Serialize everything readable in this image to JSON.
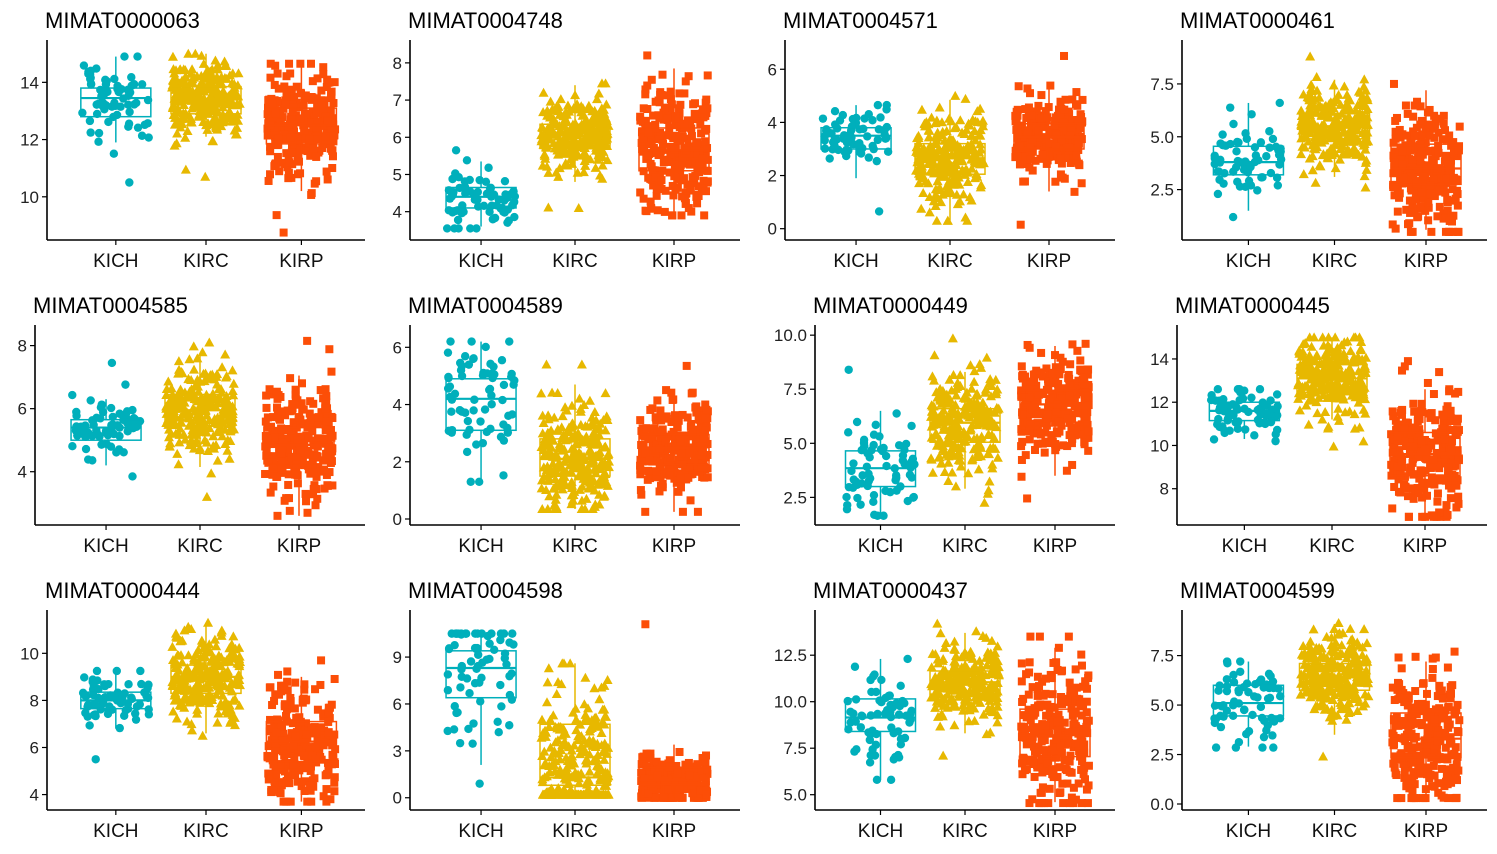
{
  "chart_data": {
    "type": "boxplot-jitter",
    "layout": {
      "rows": 3,
      "cols": 4
    },
    "categories": [
      "KICH",
      "KIRC",
      "KIRP"
    ],
    "colors": {
      "KICH": "#00AFBB",
      "KIRC": "#E7B800",
      "KIRP": "#FC4E07"
    },
    "markers": {
      "KICH": "circle",
      "KIRC": "triangle",
      "KIRP": "square"
    },
    "xlabel": "",
    "ylabel": "",
    "grid": false,
    "legend": "none",
    "panels": [
      {
        "title": "MIMAT0000063",
        "ylim": [
          8.7,
          15.2
        ],
        "yticks": [
          10,
          12,
          14
        ],
        "ytick_labels": [
          "10",
          "12",
          "14"
        ],
        "boxes": [
          {
            "group": "KICH",
            "min": 11.9,
            "q1": 12.8,
            "median": 13.45,
            "q3": 13.8,
            "max": 14.9,
            "point_range": [
              10.5,
              14.9
            ],
            "n_points": 66
          },
          {
            "group": "KIRC",
            "min": 12.1,
            "q1": 12.9,
            "median": 13.4,
            "q3": 13.85,
            "max": 15.0,
            "point_range": [
              10.7,
              15.0
            ],
            "n_points": 500
          },
          {
            "group": "KIRP",
            "min": 10.2,
            "q1": 11.85,
            "median": 12.5,
            "q3": 13.1,
            "max": 14.6,
            "point_range": [
              8.75,
              14.65
            ],
            "n_points": 290
          }
        ]
      },
      {
        "title": "MIMAT0004748",
        "ylim": [
          3.4,
          8.4
        ],
        "yticks": [
          4,
          5,
          6,
          7,
          8
        ],
        "ytick_labels": [
          "4",
          "5",
          "6",
          "7",
          "8"
        ],
        "boxes": [
          {
            "group": "KICH",
            "min": 3.6,
            "q1": 4.1,
            "median": 4.4,
            "q3": 4.65,
            "max": 5.35,
            "point_range": [
              3.55,
              5.65
            ],
            "n_points": 66
          },
          {
            "group": "KIRC",
            "min": 4.8,
            "q1": 5.7,
            "median": 6.05,
            "q3": 6.35,
            "max": 7.4,
            "point_range": [
              4.1,
              7.45
            ],
            "n_points": 500
          },
          {
            "group": "KIRP",
            "min": 3.95,
            "q1": 5.1,
            "median": 5.65,
            "q3": 6.25,
            "max": 7.85,
            "point_range": [
              3.9,
              8.2
            ],
            "n_points": 290
          }
        ]
      },
      {
        "title": "MIMAT0004571",
        "ylim": [
          -0.2,
          6.8
        ],
        "yticks": [
          0,
          2,
          4,
          6
        ],
        "ytick_labels": [
          "0",
          "2",
          "4",
          "6"
        ],
        "boxes": [
          {
            "group": "KICH",
            "min": 1.9,
            "q1": 3.0,
            "median": 3.5,
            "q3": 3.8,
            "max": 4.65,
            "point_range": [
              0.65,
              4.65
            ],
            "n_points": 66
          },
          {
            "group": "KIRC",
            "min": 0.3,
            "q1": 2.05,
            "median": 2.65,
            "q3": 3.2,
            "max": 4.85,
            "point_range": [
              0.3,
              5.0
            ],
            "n_points": 500
          },
          {
            "group": "KIRP",
            "min": 1.4,
            "q1": 3.0,
            "median": 3.45,
            "q3": 3.95,
            "max": 5.3,
            "point_range": [
              0.15,
              6.5
            ],
            "n_points": 290
          }
        ]
      },
      {
        "title": "MIMAT0000461",
        "ylim": [
          0.4,
          9.2
        ],
        "yticks": [
          2.5,
          5.0,
          7.5
        ],
        "ytick_labels": [
          "2.5",
          "5.0",
          "7.5"
        ],
        "boxes": [
          {
            "group": "KICH",
            "min": 1.5,
            "q1": 3.2,
            "median": 3.8,
            "q3": 4.55,
            "max": 6.6,
            "point_range": [
              1.2,
              6.6
            ],
            "n_points": 66
          },
          {
            "group": "KIRC",
            "min": 3.1,
            "q1": 4.9,
            "median": 5.5,
            "q3": 6.1,
            "max": 7.7,
            "point_range": [
              2.6,
              8.8
            ],
            "n_points": 500
          },
          {
            "group": "KIRP",
            "min": 0.6,
            "q1": 2.75,
            "median": 3.5,
            "q3": 4.65,
            "max": 7.2,
            "point_range": [
              0.5,
              7.5
            ],
            "n_points": 290
          }
        ]
      },
      {
        "title": "MIMAT0004585",
        "ylim": [
          2.5,
          8.4
        ],
        "yticks": [
          4,
          6,
          8
        ],
        "ytick_labels": [
          "4",
          "6",
          "8"
        ],
        "boxes": [
          {
            "group": "KICH",
            "min": 4.2,
            "q1": 5.0,
            "median": 5.4,
            "q3": 5.65,
            "max": 6.3,
            "point_range": [
              3.85,
              7.45
            ],
            "n_points": 66
          },
          {
            "group": "KIRC",
            "min": 4.15,
            "q1": 5.45,
            "median": 5.95,
            "q3": 6.45,
            "max": 7.7,
            "point_range": [
              3.2,
              8.1
            ],
            "n_points": 500
          },
          {
            "group": "KIRP",
            "min": 2.6,
            "q1": 4.25,
            "median": 4.85,
            "q3": 5.4,
            "max": 7.05,
            "point_range": [
              2.6,
              8.15
            ],
            "n_points": 290
          }
        ]
      },
      {
        "title": "MIMAT0004589",
        "ylim": [
          0,
          6.5
        ],
        "yticks": [
          0,
          2,
          4,
          6
        ],
        "ytick_labels": [
          "0",
          "2",
          "4",
          "6"
        ],
        "boxes": [
          {
            "group": "KICH",
            "min": 1.35,
            "q1": 3.1,
            "median": 4.2,
            "q3": 4.9,
            "max": 6.2,
            "point_range": [
              1.3,
              6.2
            ],
            "n_points": 66
          },
          {
            "group": "KIRC",
            "min": 0.35,
            "q1": 1.5,
            "median": 2.1,
            "q3": 2.8,
            "max": 4.7,
            "point_range": [
              0.35,
              5.4
            ],
            "n_points": 500
          },
          {
            "group": "KIRP",
            "min": 0.25,
            "q1": 1.9,
            "median": 2.5,
            "q3": 2.95,
            "max": 4.1,
            "point_range": [
              0.25,
              5.35
            ],
            "n_points": 290
          }
        ]
      },
      {
        "title": "MIMAT0000449",
        "ylim": [
          1.5,
          10.1
        ],
        "yticks": [
          2.5,
          5.0,
          7.5,
          10.0
        ],
        "ytick_labels": [
          "2.5",
          "5.0",
          "7.5",
          "10.0"
        ],
        "boxes": [
          {
            "group": "KICH",
            "min": 1.7,
            "q1": 3.0,
            "median": 3.85,
            "q3": 4.65,
            "max": 6.5,
            "point_range": [
              1.65,
              8.4
            ],
            "n_points": 66
          },
          {
            "group": "KIRC",
            "min": 2.9,
            "q1": 5.05,
            "median": 5.95,
            "q3": 6.6,
            "max": 8.3,
            "point_range": [
              2.25,
              9.85
            ],
            "n_points": 500
          },
          {
            "group": "KIRP",
            "min": 3.5,
            "q1": 5.8,
            "median": 6.8,
            "q3": 7.45,
            "max": 9.5,
            "point_range": [
              2.45,
              9.6
            ],
            "n_points": 290
          }
        ]
      },
      {
        "title": "MIMAT0000445",
        "ylim": [
          6.6,
          15.2
        ],
        "yticks": [
          8,
          10,
          12,
          14
        ],
        "ytick_labels": [
          "8",
          "10",
          "12",
          "14"
        ],
        "boxes": [
          {
            "group": "KICH",
            "min": 10.3,
            "q1": 11.15,
            "median": 11.6,
            "q3": 12.0,
            "max": 12.55,
            "point_range": [
              10.2,
              12.6
            ],
            "n_points": 66
          },
          {
            "group": "KIRC",
            "min": 11.2,
            "q1": 12.45,
            "median": 13.1,
            "q3": 13.75,
            "max": 15.0,
            "point_range": [
              9.95,
              15.0
            ],
            "n_points": 500
          },
          {
            "group": "KIRP",
            "min": 6.8,
            "q1": 8.6,
            "median": 9.6,
            "q3": 10.6,
            "max": 12.6,
            "point_range": [
              6.7,
              13.9
            ],
            "n_points": 290
          }
        ]
      },
      {
        "title": "MIMAT0000444",
        "ylim": [
          3.6,
          11.5
        ],
        "yticks": [
          4,
          6,
          8,
          10
        ],
        "ytick_labels": [
          "4",
          "6",
          "8",
          "10"
        ],
        "boxes": [
          {
            "group": "KICH",
            "min": 6.8,
            "q1": 7.65,
            "median": 8.0,
            "q3": 8.35,
            "max": 9.2,
            "point_range": [
              5.5,
              9.25
            ],
            "n_points": 66
          },
          {
            "group": "KIRC",
            "min": 6.6,
            "q1": 8.3,
            "median": 9.0,
            "q3": 9.5,
            "max": 11.2,
            "point_range": [
              6.5,
              11.3
            ],
            "n_points": 500
          },
          {
            "group": "KIRP",
            "min": 3.7,
            "q1": 5.4,
            "median": 6.25,
            "q3": 7.1,
            "max": 9.0,
            "point_range": [
              3.7,
              9.7
            ],
            "n_points": 290
          }
        ]
      },
      {
        "title": "MIMAT0004598",
        "ylim": [
          -0.4,
          11.5
        ],
        "yticks": [
          0,
          3,
          6,
          9
        ],
        "ytick_labels": [
          "0",
          "3",
          "6",
          "9"
        ],
        "boxes": [
          {
            "group": "KICH",
            "min": 2.1,
            "q1": 6.4,
            "median": 8.3,
            "q3": 9.4,
            "max": 10.5,
            "point_range": [
              0.9,
              10.5
            ],
            "n_points": 66
          },
          {
            "group": "KIRC",
            "min": 0.2,
            "q1": 0.8,
            "median": 1.3,
            "q3": 4.7,
            "max": 8.6,
            "point_range": [
              0.2,
              8.6
            ],
            "n_points": 500
          },
          {
            "group": "KIRP",
            "min": 0.0,
            "q1": 0.85,
            "median": 1.1,
            "q3": 1.95,
            "max": 3.4,
            "point_range": [
              0.0,
              11.1
            ],
            "n_points": 290
          }
        ]
      },
      {
        "title": "MIMAT0000437",
        "ylim": [
          4.5,
          14.5
        ],
        "yticks": [
          5.0,
          7.5,
          10.0,
          12.5
        ],
        "ytick_labels": [
          "5.0",
          "7.5",
          "10.0",
          "12.5"
        ],
        "boxes": [
          {
            "group": "KICH",
            "min": 5.8,
            "q1": 8.4,
            "median": 9.15,
            "q3": 10.15,
            "max": 12.3,
            "point_range": [
              5.8,
              12.3
            ],
            "n_points": 66
          },
          {
            "group": "KIRC",
            "min": 8.3,
            "q1": 10.3,
            "median": 11.05,
            "q3": 11.65,
            "max": 13.7,
            "point_range": [
              7.1,
              14.2
            ],
            "n_points": 500
          },
          {
            "group": "KIRP",
            "min": 4.6,
            "q1": 7.05,
            "median": 8.2,
            "q3": 9.6,
            "max": 12.9,
            "point_range": [
              4.55,
              13.5
            ],
            "n_points": 290
          }
        ]
      },
      {
        "title": "MIMAT0004599",
        "ylim": [
          0,
          9.4
        ],
        "yticks": [
          0.0,
          2.5,
          5.0,
          7.5
        ],
        "ytick_labels": [
          "0.0",
          "2.5",
          "5.0",
          "7.5"
        ],
        "boxes": [
          {
            "group": "KICH",
            "min": 2.9,
            "q1": 4.45,
            "median": 5.1,
            "q3": 6.0,
            "max": 7.2,
            "point_range": [
              2.85,
              7.2
            ],
            "n_points": 66
          },
          {
            "group": "KIRC",
            "min": 3.5,
            "q1": 5.75,
            "median": 6.45,
            "q3": 7.1,
            "max": 9.1,
            "point_range": [
              2.4,
              9.15
            ],
            "n_points": 500
          },
          {
            "group": "KIRP",
            "min": 0.3,
            "q1": 2.35,
            "median": 3.3,
            "q3": 4.6,
            "max": 7.2,
            "point_range": [
              0.3,
              7.7
            ],
            "n_points": 290
          }
        ]
      }
    ]
  }
}
